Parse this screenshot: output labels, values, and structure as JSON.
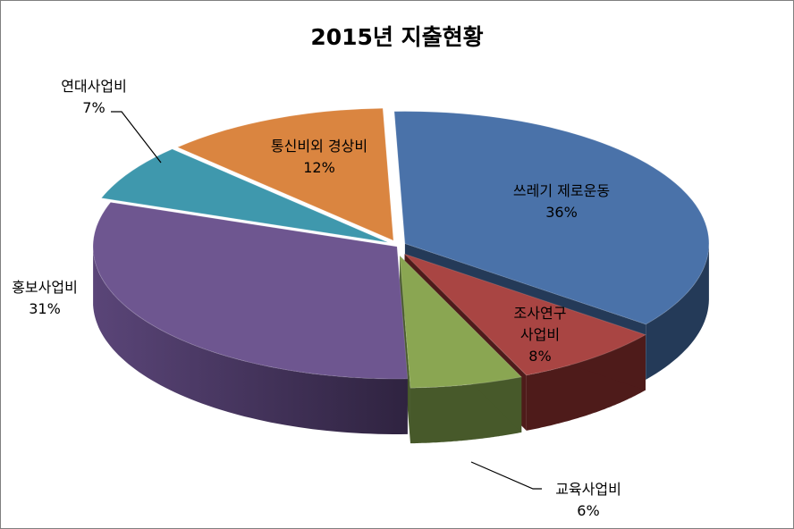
{
  "chart_data": {
    "type": "pie",
    "title": "2015년 지출현황",
    "slices": [
      {
        "label": "쓰레기 제로운동",
        "pct_label": "36%",
        "value": 36,
        "color": "#4a72a9",
        "side": "#243a58"
      },
      {
        "label": "조사연구 사업비",
        "pct_label": "8%",
        "value": 8,
        "color": "#a94543",
        "side": "#4e1b1a"
      },
      {
        "label": "교육사업비",
        "pct_label": "6%",
        "value": 6,
        "color": "#8aa652",
        "side": "#47592a"
      },
      {
        "label": "홍보사업비",
        "pct_label": "31%",
        "value": 31,
        "color": "#6e5690",
        "side": "#3f2f55"
      },
      {
        "label": "연대사업비",
        "pct_label": "7%",
        "value": 7,
        "color": "#3f98ad",
        "side": "#1d5260"
      },
      {
        "label": "통신비외 경상비",
        "pct_label": "12%",
        "value": 12,
        "color": "#da8540",
        "side": "#7a4418"
      }
    ]
  },
  "labels": {
    "s0": {
      "line1": "쓰레기 제로운동",
      "line2": "36%"
    },
    "s1": {
      "line1": "조사연구",
      "line2": "사업비",
      "line3": "8%"
    },
    "s2": {
      "line1": "교육사업비",
      "line2": "6%"
    },
    "s3": {
      "line1": "홍보사업비",
      "line2": "31%"
    },
    "s4": {
      "line1": "연대사업비",
      "line2": "7%"
    },
    "s5": {
      "line1": "통신비외 경상비",
      "line2": "12%"
    }
  }
}
